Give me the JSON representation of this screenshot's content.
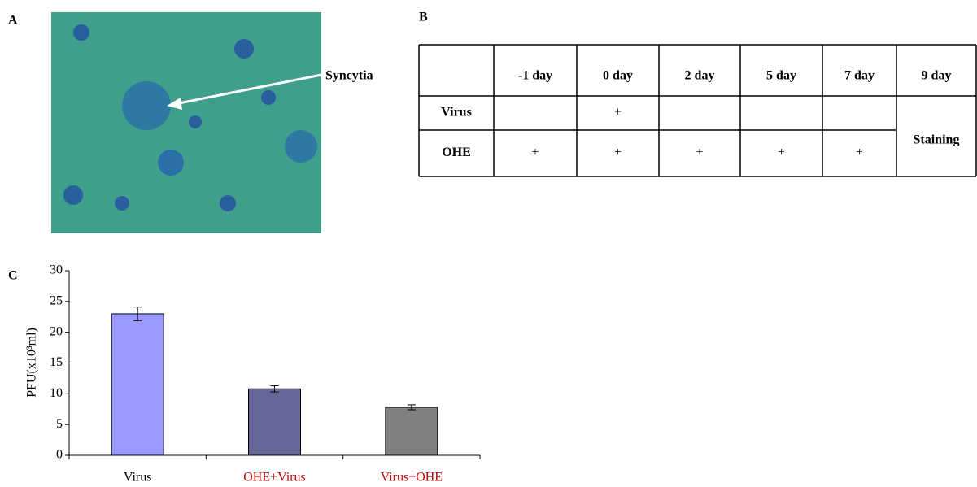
{
  "panel_a": {
    "label": "A",
    "annotation": "Syncytia"
  },
  "panel_b": {
    "label": "B",
    "table": {
      "header": [
        "-1 day",
        "0 day",
        "2 day",
        "5 day",
        "7 day",
        "9 day"
      ],
      "rows": [
        [
          "Virus",
          null,
          "+",
          null,
          null,
          null
        ],
        [
          "OHE",
          "+",
          "+",
          "+",
          "+",
          "+"
        ]
      ],
      "merged_cell": "Staining"
    }
  },
  "chart_data": {
    "type": "bar",
    "panel_label": "C",
    "y_label": "PFU(x10³ml)",
    "categories": [
      "Virus",
      "OHE+Virus",
      "Virus+OHE"
    ],
    "category_label_colors": [
      "#000000",
      "#c00000",
      "#c00000"
    ],
    "values": [
      23,
      10.8,
      7.8
    ],
    "errors": [
      1.1,
      0.5,
      0.4
    ],
    "colors": [
      "#9999ff",
      "#666699",
      "#808080"
    ],
    "ylim": [
      0,
      30
    ],
    "yticks": [
      0,
      5,
      10,
      15,
      20,
      25,
      30
    ]
  }
}
